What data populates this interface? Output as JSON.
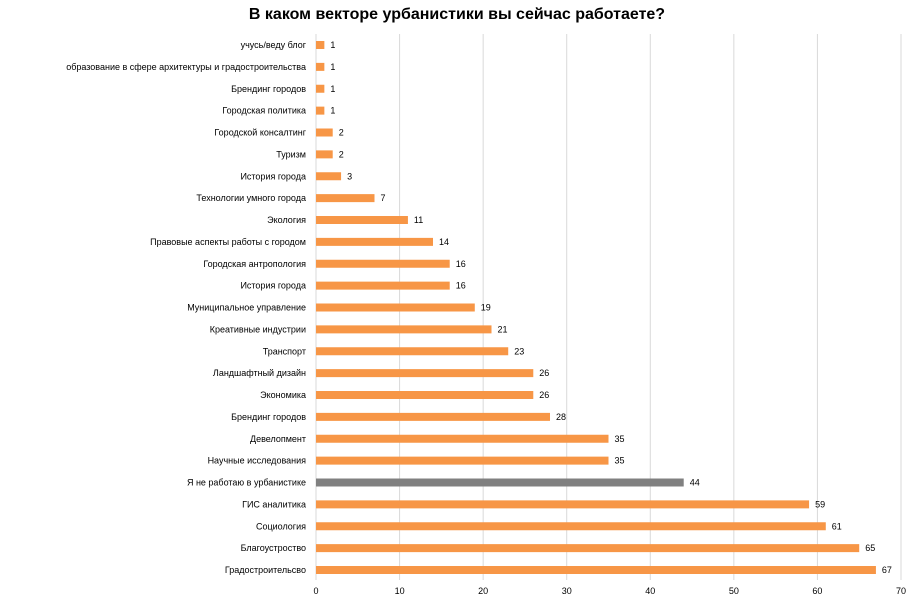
{
  "chart_data": {
    "type": "bar",
    "orientation": "horizontal",
    "title": "В каком векторе урбанистики вы сейчас работаете?",
    "xlabel": "",
    "ylabel": "",
    "xlim": [
      0,
      70
    ],
    "xticks": [
      0,
      10,
      20,
      30,
      40,
      50,
      60,
      70
    ],
    "grid": true,
    "legend": "none",
    "colors": {
      "default": "#F79646",
      "highlight": "#808080",
      "grid": "#d9d9d9"
    },
    "categories": [
      "учусь/веду блог",
      "образование в сфере архитектуры и градостроительства",
      "Брендинг городов",
      "Городская политика",
      "Городской консалтинг",
      "Туризм",
      "История города",
      "Технологии умного города",
      "Экология",
      "Правовые аспекты работы с городом",
      "Городская антропология",
      "История города",
      "Муниципальное управление",
      "Креативные индустрии",
      "Транспорт",
      "Ландшафтный дизайн",
      "Экономика",
      "Брендинг городов",
      "Девелопмент",
      "Научные исследования",
      "Я не работаю в урбанистике",
      "ГИС аналитика",
      "Социология",
      "Благоустроство",
      "Градостроительсво"
    ],
    "values": [
      1,
      1,
      1,
      1,
      2,
      2,
      3,
      7,
      11,
      14,
      16,
      16,
      19,
      21,
      23,
      26,
      26,
      28,
      35,
      35,
      44,
      59,
      61,
      65,
      67
    ],
    "highlight_index": 20
  }
}
